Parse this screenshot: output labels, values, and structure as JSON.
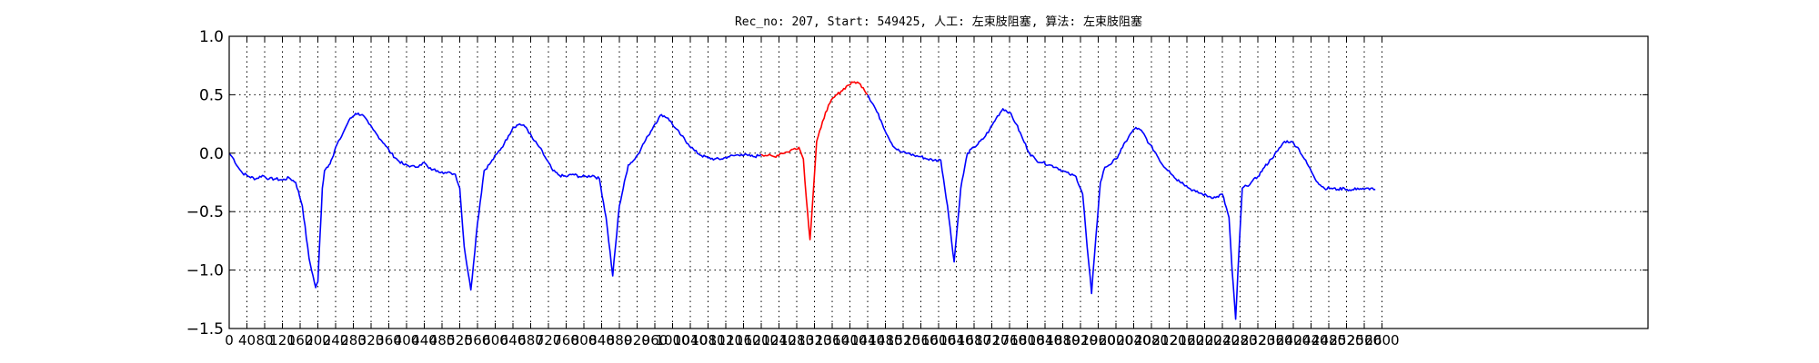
{
  "chart_data": {
    "type": "line",
    "title": "Rec_no: 207, Start: 549425, 人工: 左束肢阻塞, 算法: 左束肢阻塞",
    "xlabel": "",
    "ylabel": "",
    "xlim": [
      0,
      3200
    ],
    "ylim": [
      -1.5,
      1.0
    ],
    "grid": true,
    "yticks": [
      1.0,
      0.5,
      0.0,
      -0.5,
      -1.0,
      -1.5
    ],
    "ytick_labels": [
      "1.0",
      "0.5",
      "0.0",
      "−0.5",
      "−1.0",
      "−1.5"
    ],
    "xtick_step": 40,
    "xtick_max": 2600,
    "xtick_labels": [
      "0",
      "40",
      "80",
      "120",
      "160",
      "200",
      "240",
      "280",
      "320",
      "360",
      "400",
      "440",
      "480",
      "520",
      "560",
      "600",
      "640",
      "680",
      "720",
      "760",
      "800",
      "840",
      "880",
      "920",
      "960",
      "1000",
      "1040",
      "1080",
      "1120",
      "1160",
      "1200",
      "1240",
      "1280",
      "1320",
      "1360",
      "1400",
      "1440",
      "1480",
      "1520",
      "1560",
      "1600",
      "1640",
      "1680",
      "1720",
      "1760",
      "1800",
      "1840",
      "1880",
      "1920",
      "1960",
      "2000",
      "2040",
      "2080",
      "2120",
      "2160",
      "2200",
      "2240",
      "2280",
      "2320",
      "2360",
      "2400",
      "2440",
      "2480",
      "2520",
      "2560",
      "2600"
    ],
    "series": [
      {
        "color": "#0000ff",
        "x": [
          0,
          10,
          20,
          30,
          45,
          60,
          75,
          90,
          105,
          120,
          135,
          150,
          165,
          180,
          195,
          200,
          205,
          210,
          215,
          220,
          225,
          230,
          235,
          240,
          250,
          260,
          270,
          285,
          300,
          315,
          325,
          335,
          350,
          365,
          380,
          395,
          410,
          420,
          430,
          440,
          450,
          460,
          470,
          480,
          490,
          500,
          510,
          520,
          530,
          545,
          560,
          575,
          590,
          605,
          620,
          630,
          640,
          655,
          670,
          685,
          700,
          715,
          730,
          745,
          760,
          775,
          790,
          805,
          820,
          835,
          850,
          865,
          880,
          900,
          915,
          930,
          945,
          960,
          975,
          990,
          1005,
          1020,
          1035,
          1050,
          1065,
          1080,
          1095,
          1110,
          1125,
          1140,
          1155,
          1170,
          1185,
          1200
        ],
        "y": [
          0.0,
          -0.05,
          -0.12,
          -0.17,
          -0.2,
          -0.22,
          -0.19,
          -0.22,
          -0.22,
          -0.23,
          -0.21,
          -0.25,
          -0.45,
          -0.9,
          -1.15,
          -1.1,
          -0.7,
          -0.3,
          -0.15,
          -0.12,
          -0.1,
          -0.06,
          -0.02,
          0.05,
          0.12,
          0.2,
          0.28,
          0.34,
          0.33,
          0.25,
          0.2,
          0.15,
          0.08,
          0.0,
          -0.06,
          -0.1,
          -0.11,
          -0.12,
          -0.1,
          -0.08,
          -0.13,
          -0.14,
          -0.15,
          -0.16,
          -0.17,
          -0.17,
          -0.18,
          -0.3,
          -0.8,
          -1.17,
          -0.6,
          -0.15,
          -0.08,
          0.0,
          0.08,
          0.15,
          0.22,
          0.25,
          0.22,
          0.12,
          0.05,
          -0.05,
          -0.15,
          -0.19,
          -0.2,
          -0.18,
          -0.2,
          -0.2,
          -0.19,
          -0.22,
          -0.55,
          -1.05,
          -0.45,
          -0.1,
          -0.05,
          0.05,
          0.15,
          0.25,
          0.33,
          0.3,
          0.22,
          0.15,
          0.08,
          0.02,
          -0.02,
          -0.04,
          -0.05,
          -0.05,
          -0.03,
          -0.02,
          -0.01,
          -0.02,
          -0.03,
          -0.01
        ]
      },
      {
        "color": "#ff0000",
        "x": [
          1200,
          1215,
          1230,
          1245,
          1260,
          1275,
          1285,
          1295,
          1302,
          1310,
          1318,
          1325,
          1335,
          1345,
          1355,
          1365,
          1380,
          1395,
          1410,
          1420,
          1430,
          1440
        ],
        "y": [
          -0.01,
          -0.02,
          -0.03,
          0.0,
          0.01,
          0.04,
          0.05,
          -0.05,
          -0.4,
          -0.74,
          -0.3,
          0.1,
          0.22,
          0.35,
          0.43,
          0.48,
          0.53,
          0.58,
          0.61,
          0.6,
          0.56,
          0.5
        ]
      },
      {
        "color": "#0000ff",
        "x": [
          1440,
          1455,
          1470,
          1485,
          1500,
          1515,
          1530,
          1545,
          1560,
          1575,
          1590,
          1605,
          1620,
          1635,
          1650,
          1665,
          1680,
          1700,
          1715,
          1730,
          1745,
          1760,
          1775,
          1790,
          1805,
          1820,
          1835,
          1850,
          1865,
          1880,
          1895,
          1910,
          1925,
          1935,
          1945,
          1955,
          1965,
          1975,
          1985,
          2000,
          2015,
          2030,
          2045,
          2060,
          2075,
          2090,
          2105,
          2120,
          2135,
          2150,
          2165,
          2180,
          2195,
          2210,
          2225,
          2240,
          2255,
          2262,
          2270,
          2278,
          2285,
          2295,
          2305,
          2320,
          2335,
          2350,
          2365,
          2380,
          2395,
          2410,
          2425,
          2440,
          2455,
          2470,
          2485,
          2500,
          2515,
          2530,
          2545,
          2560,
          2575,
          2585
        ],
        "y": [
          0.5,
          0.4,
          0.28,
          0.15,
          0.05,
          0.01,
          0.0,
          -0.02,
          -0.03,
          -0.05,
          -0.06,
          -0.06,
          -0.45,
          -0.93,
          -0.3,
          0.0,
          0.05,
          0.12,
          0.2,
          0.3,
          0.38,
          0.35,
          0.25,
          0.12,
          0.0,
          -0.06,
          -0.08,
          -0.1,
          -0.12,
          -0.15,
          -0.18,
          -0.2,
          -0.35,
          -0.8,
          -1.2,
          -0.7,
          -0.25,
          -0.12,
          -0.1,
          -0.05,
          0.05,
          0.15,
          0.22,
          0.18,
          0.08,
          0.0,
          -0.1,
          -0.15,
          -0.22,
          -0.25,
          -0.3,
          -0.33,
          -0.35,
          -0.37,
          -0.38,
          -0.35,
          -0.55,
          -1.0,
          -1.42,
          -0.8,
          -0.3,
          -0.28,
          -0.25,
          -0.2,
          -0.12,
          -0.05,
          0.02,
          0.1,
          0.1,
          0.05,
          -0.05,
          -0.15,
          -0.25,
          -0.3,
          -0.3,
          -0.31,
          -0.3,
          -0.32,
          -0.3,
          -0.31,
          -0.3,
          -0.31
        ]
      }
    ]
  }
}
